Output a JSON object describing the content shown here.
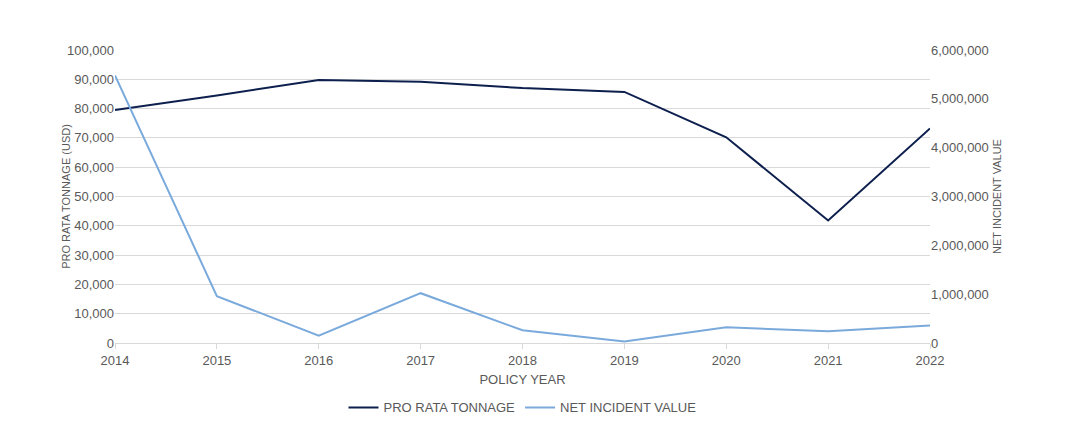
{
  "chart_data": {
    "type": "line",
    "x_label": "POLICY YEAR",
    "y_label": "PRO RATA TONNAGE (USD)",
    "y2_label": "NET INCIDENT VALUE",
    "categories": [
      "2014",
      "2015",
      "2016",
      "2017",
      "2018",
      "2019",
      "2020",
      "2021",
      "2022"
    ],
    "series": [
      {
        "name": "PRO RATA TONNAGE",
        "color": "#0d1f4d",
        "axis": "y",
        "values": [
          79500,
          84500,
          89800,
          89200,
          87000,
          85700,
          70200,
          41800,
          73200
        ]
      },
      {
        "name": "NET INCIDENT VALUE",
        "color": "#7aaadc",
        "axis": "y2",
        "values": [
          5480000,
          960000,
          150000,
          1020000,
          260000,
          30000,
          320000,
          240000,
          360000
        ]
      }
    ],
    "ylim": [
      0,
      100000
    ],
    "yticks": [
      0,
      {
        "value": 10000,
        "label": "10,000"
      },
      {
        "value": 20000,
        "label": "20,000"
      },
      {
        "value": 30000,
        "label": "30,000"
      },
      {
        "value": 40000,
        "label": "40,000"
      },
      {
        "value": 50000,
        "label": "50,000"
      },
      {
        "value": 60000,
        "label": "60,000"
      },
      {
        "value": 70000,
        "label": "70,000"
      },
      {
        "value": 80000,
        "label": "80,000"
      },
      {
        "value": 90000,
        "label": "90,000"
      },
      {
        "value": 100000,
        "label": "100,000"
      }
    ],
    "y2lim": [
      0,
      6000000
    ],
    "y2ticks": [
      0,
      {
        "value": 1000000,
        "label": "1,000,000"
      },
      {
        "value": 2000000,
        "label": "2,000,000"
      },
      {
        "value": 3000000,
        "label": "3,000,000"
      },
      {
        "value": 4000000,
        "label": "4,000,000"
      },
      {
        "value": 5000000,
        "label": "5,000,000"
      },
      {
        "value": 6000000,
        "label": "6,000,000"
      }
    ],
    "grid": true,
    "legend": "bottom"
  }
}
